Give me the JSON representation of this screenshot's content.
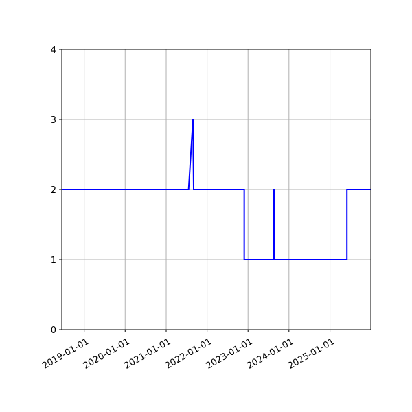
{
  "chart_data": {
    "type": "line",
    "title": "",
    "xlabel": "",
    "ylabel": "",
    "x_axis": {
      "kind": "date",
      "range": [
        "2018-06-15",
        "2025-12-31"
      ],
      "ticks": [
        "2019-01-01",
        "2020-01-01",
        "2021-01-01",
        "2022-01-01",
        "2023-01-01",
        "2024-01-01",
        "2025-01-01"
      ],
      "tick_labels": [
        "2019-01-01",
        "2020-01-01",
        "2021-01-01",
        "2022-01-01",
        "2023-01-01",
        "2024-01-01",
        "2025-01-01"
      ]
    },
    "y_axis": {
      "range": [
        0,
        4
      ],
      "ticks": [
        0,
        1,
        2,
        3,
        4
      ],
      "tick_labels": [
        "0",
        "1",
        "2",
        "3",
        "4"
      ]
    },
    "grid": true,
    "legend": "none",
    "series": [
      {
        "color": "#0000ff",
        "points": [
          {
            "x": "2018-06-15",
            "y": 2
          },
          {
            "x": "2021-07-20",
            "y": 2
          },
          {
            "x": "2021-08-28",
            "y": 3
          },
          {
            "x": "2021-09-03",
            "y": 2
          },
          {
            "x": "2022-11-28",
            "y": 2
          },
          {
            "x": "2022-11-28",
            "y": 1
          },
          {
            "x": "2023-08-15",
            "y": 1
          },
          {
            "x": "2023-08-15",
            "y": 2
          },
          {
            "x": "2023-08-25",
            "y": 2
          },
          {
            "x": "2023-08-25",
            "y": 1
          },
          {
            "x": "2025-06-01",
            "y": 1
          },
          {
            "x": "2025-06-01",
            "y": 2
          },
          {
            "x": "2025-12-31",
            "y": 2
          }
        ]
      }
    ]
  }
}
